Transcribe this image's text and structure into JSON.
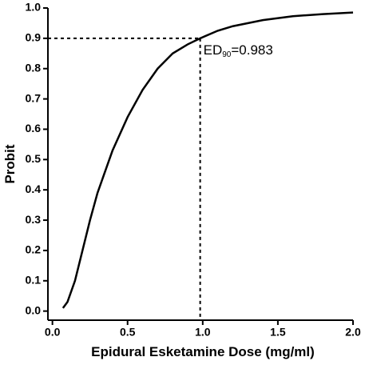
{
  "chart_data": {
    "type": "line",
    "x_label": "Epidural Esketamine Dose (mg/ml)",
    "y_label": "Probit",
    "series": [
      {
        "color": "#000000",
        "x": [
          0.07,
          0.1,
          0.15,
          0.2,
          0.25,
          0.3,
          0.4,
          0.5,
          0.6,
          0.7,
          0.8,
          0.9,
          0.983,
          1.1,
          1.2,
          1.4,
          1.6,
          1.8,
          2.0
        ],
        "values": [
          0.01,
          0.03,
          0.1,
          0.2,
          0.3,
          0.39,
          0.53,
          0.64,
          0.73,
          0.8,
          0.85,
          0.88,
          0.9,
          0.925,
          0.94,
          0.96,
          0.973,
          0.98,
          0.985
        ]
      }
    ],
    "xlim": [
      -0.03,
      2.0
    ],
    "xticks": [
      {
        "value": 0,
        "label": "0.0"
      },
      0.5,
      {
        "value": 1,
        "label": "1.0"
      },
      1.5,
      {
        "value": 2,
        "label": "2.0"
      }
    ],
    "ylim": [
      -0.03,
      1.0
    ],
    "yticks": [
      {
        "value": 0,
        "label": "0.0"
      },
      0.1,
      0.2,
      0.3,
      0.4,
      0.5,
      0.6,
      0.7,
      0.8,
      0.9,
      {
        "value": 1,
        "label": "1.0"
      }
    ],
    "annotation": {
      "parts": [
        "ED",
        "90",
        "=0.983"
      ],
      "x": 0.983,
      "y": 0.9
    }
  }
}
